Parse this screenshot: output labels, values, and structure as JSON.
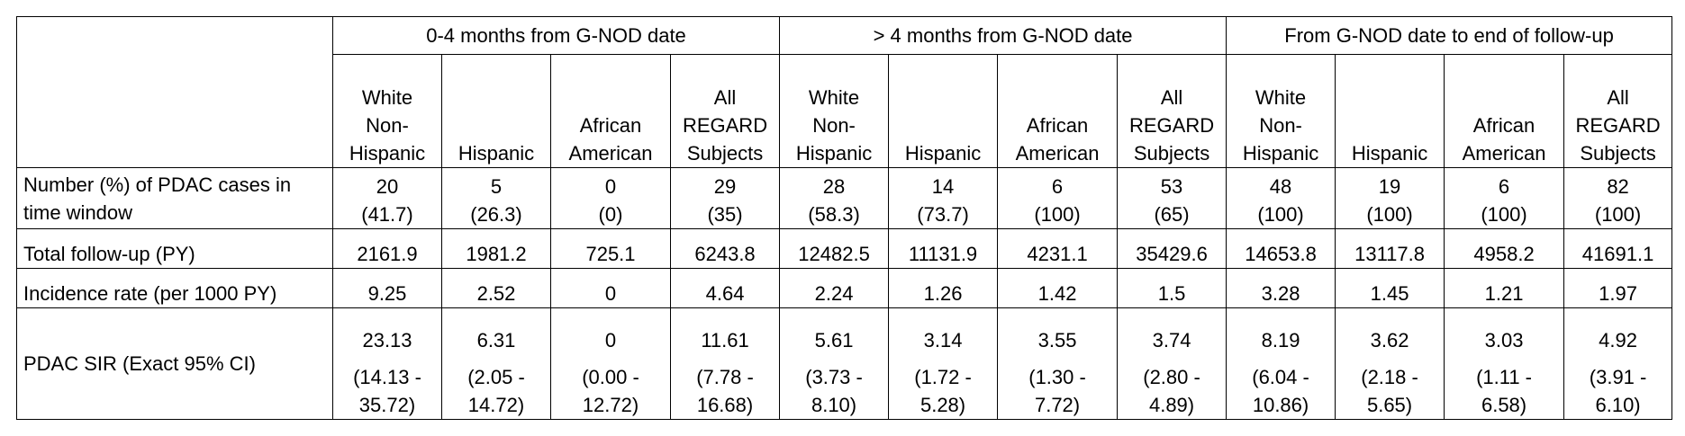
{
  "groups": [
    "0-4 months from G-NOD date",
    "> 4 months from G-NOD date",
    "From G-NOD date to end of follow-up"
  ],
  "subcolumns": [
    [
      "White",
      "Non-",
      "Hispanic"
    ],
    [
      "Hispanic"
    ],
    [
      "African",
      "American"
    ],
    [
      "All",
      "REGARD",
      "Subjects"
    ]
  ],
  "rows": {
    "cases": {
      "label_lines": [
        "Number (%) of PDAC cases in",
        "time window"
      ],
      "values": [
        [
          "20",
          "(41.7)"
        ],
        [
          "5",
          "(26.3)"
        ],
        [
          "0",
          "(0)"
        ],
        [
          "29",
          "(35)"
        ],
        [
          "28",
          "(58.3)"
        ],
        [
          "14",
          "(73.7)"
        ],
        [
          "6",
          "(100)"
        ],
        [
          "53",
          "(65)"
        ],
        [
          "48",
          "(100)"
        ],
        [
          "19",
          "(100)"
        ],
        [
          "6",
          "(100)"
        ],
        [
          "82",
          "(100)"
        ]
      ]
    },
    "followup": {
      "label": "Total follow-up (PY)",
      "values": [
        "2161.9",
        "1981.2",
        "725.1",
        "6243.8",
        "12482.5",
        "11131.9",
        "4231.1",
        "35429.6",
        "14653.8",
        "13117.8",
        "4958.2",
        "41691.1"
      ]
    },
    "incidence": {
      "label": "Incidence rate (per 1000 PY)",
      "values": [
        "9.25",
        "2.52",
        "0",
        "4.64",
        "2.24",
        "1.26",
        "1.42",
        "1.5",
        "3.28",
        "1.45",
        "1.21",
        "1.97"
      ]
    },
    "sir": {
      "label": "PDAC SIR (Exact 95% CI)",
      "values": [
        [
          "23.13",
          "(14.13 -",
          "35.72)"
        ],
        [
          "6.31",
          "(2.05 -",
          "14.72)"
        ],
        [
          "0",
          "(0.00 -",
          "12.72)"
        ],
        [
          "11.61",
          "(7.78 -",
          "16.68)"
        ],
        [
          "5.61",
          "(3.73 -",
          "8.10)"
        ],
        [
          "3.14",
          "(1.72 -",
          "5.28)"
        ],
        [
          "3.55",
          "(1.30 -",
          "7.72)"
        ],
        [
          "3.74",
          "(2.80 -",
          "4.89)"
        ],
        [
          "8.19",
          "(6.04 -",
          "10.86)"
        ],
        [
          "3.62",
          "(2.18 -",
          "5.65)"
        ],
        [
          "3.03",
          "(1.11 -",
          "6.58)"
        ],
        [
          "4.92",
          "(3.91 -",
          "6.10)"
        ]
      ]
    }
  }
}
